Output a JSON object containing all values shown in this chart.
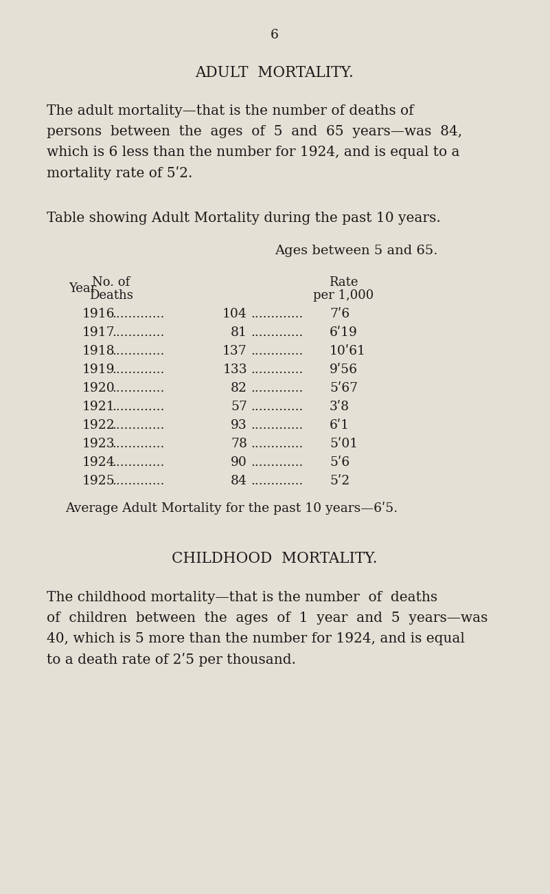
{
  "bg_color": "#e5e0d5",
  "text_color": "#1a1a1a",
  "page_number": "6",
  "title1": "ADULT  MORTALITY.",
  "para1_line1": "The adult mortality—that is the number of deaths of",
  "para1_line2": "persons  between  the  ages  of  5  and  65  years—was  84,",
  "para1_line3": "which is 6 less than the number for 1924, and is equal to a",
  "para1_line4": "mortality rate of 5ʹ2.",
  "table_intro": "Table showing Adult Mortality during the past 10 years.",
  "table_subtitle": "Ages between 5 and 65.",
  "header_year": "Year",
  "header_noof": "No. of",
  "header_deaths": "Deaths",
  "header_rate": "Rate",
  "header_per": "per 1,000",
  "table_data": [
    [
      "1916",
      "104",
      "7ʹ6"
    ],
    [
      "1917",
      "81",
      "6ʹ19"
    ],
    [
      "1918",
      "137",
      "10ʹ61"
    ],
    [
      "1919",
      "133",
      "9ʹ56"
    ],
    [
      "1920",
      "82",
      "5ʹ67"
    ],
    [
      "1921",
      "57",
      "3ʹ8"
    ],
    [
      "1922",
      "93",
      "6ʹ1"
    ],
    [
      "1923",
      "78",
      "5ʹ01"
    ],
    [
      "1924",
      "90",
      "5ʹ6"
    ],
    [
      "1925",
      "84",
      "5ʹ2"
    ]
  ],
  "dots": " .............. ",
  "average_line": "Average Adult Mortality for the past 10 years—6ʹ5.",
  "title2": "CHILDHOOD  MORTALITY.",
  "para2_line1": "The childhood mortality—that is the number  of  deaths",
  "para2_line2": "of  children  between  the  ages  of  1  year  and  5  years—was",
  "para2_line3": "40, which is 5 more than the number for 1924, and is equal",
  "para2_line4": "to a death rate of 2ʹ5 per thousand."
}
